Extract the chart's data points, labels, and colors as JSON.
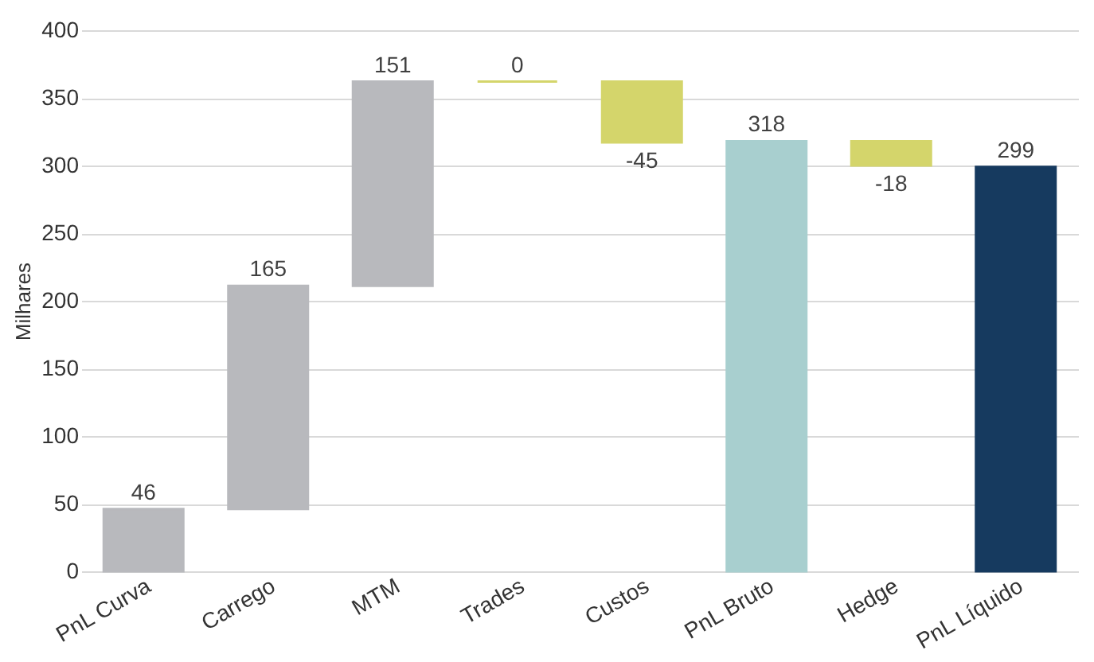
{
  "chart_data": {
    "type": "bar",
    "ylabel": "Milhares",
    "categories": [
      "PnL Curva",
      "Carrego",
      "MTM",
      "Trades",
      "Custos",
      "PnL Bruto",
      "Hedge",
      "PnL Líquido"
    ],
    "values": [
      46,
      165,
      151,
      0,
      -45,
      318,
      -18,
      299
    ],
    "base": [
      0,
      46,
      211,
      362,
      362,
      0,
      318,
      0
    ],
    "colors": [
      "#b8b9bd",
      "#b8b9bd",
      "#b8b9bd",
      "#d4d56b",
      "#d4d56b",
      "#a8cfcf",
      "#d4d56b",
      "#163a5f"
    ],
    "ylim": [
      0,
      400
    ],
    "yticks": [
      0,
      50,
      100,
      150,
      200,
      250,
      300,
      350,
      400
    ],
    "grid": "y",
    "data_labels": true
  }
}
